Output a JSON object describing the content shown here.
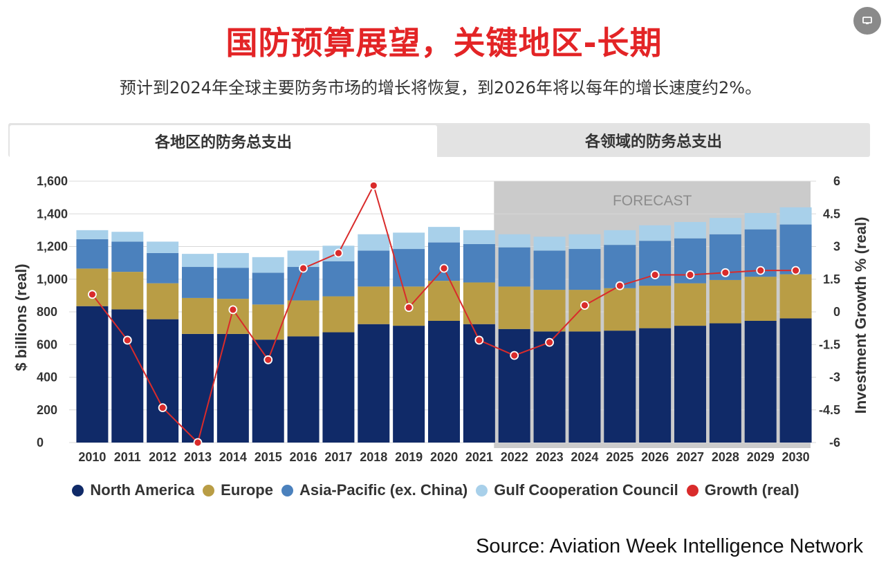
{
  "header": {
    "title": "国防预算展望，关键地区-长期",
    "subtitle": "预计到2024年全球主要防务市场的增长将恢复，到2026年将以每年的增长速度约2%。"
  },
  "tabs": [
    {
      "label": "各地区的防务总支出",
      "active": true
    },
    {
      "label": "各领域的防务总支出",
      "active": false
    }
  ],
  "corner_button": {
    "icon": "comment-icon"
  },
  "chart_data": {
    "type": "bar",
    "stacked": true,
    "categories": [
      "2010",
      "2011",
      "2012",
      "2013",
      "2014",
      "2015",
      "2016",
      "2017",
      "2018",
      "2019",
      "2020",
      "2021",
      "2022",
      "2023",
      "2024",
      "2025",
      "2026",
      "2027",
      "2028",
      "2029",
      "2030"
    ],
    "series": [
      {
        "name": "North America",
        "color": "#102a68",
        "values": [
          835,
          815,
          755,
          665,
          665,
          630,
          650,
          675,
          725,
          715,
          745,
          725,
          695,
          680,
          680,
          685,
          700,
          715,
          730,
          745,
          760
        ]
      },
      {
        "name": "Europe",
        "color": "#b99d45",
        "values": [
          230,
          230,
          220,
          220,
          215,
          215,
          220,
          220,
          230,
          240,
          245,
          255,
          260,
          255,
          255,
          260,
          260,
          260,
          265,
          270,
          270
        ]
      },
      {
        "name": "Asia-Pacific (ex. China)",
        "color": "#4b81bd",
        "values": [
          180,
          185,
          185,
          190,
          190,
          195,
          205,
          215,
          220,
          230,
          235,
          235,
          240,
          240,
          250,
          265,
          275,
          275,
          280,
          290,
          305
        ]
      },
      {
        "name": "Gulf Cooperation Council",
        "color": "#a8d0ea",
        "values": [
          55,
          60,
          70,
          80,
          90,
          95,
          100,
          95,
          100,
          100,
          95,
          85,
          80,
          85,
          90,
          90,
          95,
          100,
          100,
          100,
          105
        ]
      }
    ],
    "growth": {
      "name": "Growth (real)",
      "color": "#d92b2b",
      "values": [
        0.8,
        -1.3,
        -4.4,
        -6.0,
        0.1,
        -2.2,
        2.0,
        2.7,
        5.8,
        0.2,
        2.0,
        -1.3,
        -2.0,
        -1.4,
        0.3,
        1.2,
        1.7,
        1.7,
        1.8,
        1.9,
        1.9
      ]
    },
    "ylabel": "$ billions (real)",
    "ylim": [
      0,
      1600
    ],
    "yticks": [
      "1,600",
      "1,400",
      "1,200",
      "1,000",
      "800",
      "600",
      "400",
      "200",
      "0"
    ],
    "y2label": "Investment Growth % (real)",
    "y2lim": [
      -6,
      6
    ],
    "y2ticks": [
      "6",
      "4.5",
      "3",
      "1.5",
      "0",
      "-1.5",
      "-3",
      "-4.5",
      "-6"
    ],
    "forecast": {
      "label": "FORECAST",
      "from": "2022",
      "to": "2030"
    },
    "grid": true,
    "legend_position": "bottom"
  },
  "legend": [
    {
      "label": "North America",
      "color": "#102a68"
    },
    {
      "label": "Europe",
      "color": "#b99d45"
    },
    {
      "label": "Asia-Pacific (ex. China)",
      "color": "#4b81bd"
    },
    {
      "label": "Gulf Cooperation Council",
      "color": "#a8d0ea"
    },
    {
      "label": "Growth (real)",
      "color": "#d92b2b"
    }
  ],
  "source": "Source: Aviation Week Intelligence Network"
}
